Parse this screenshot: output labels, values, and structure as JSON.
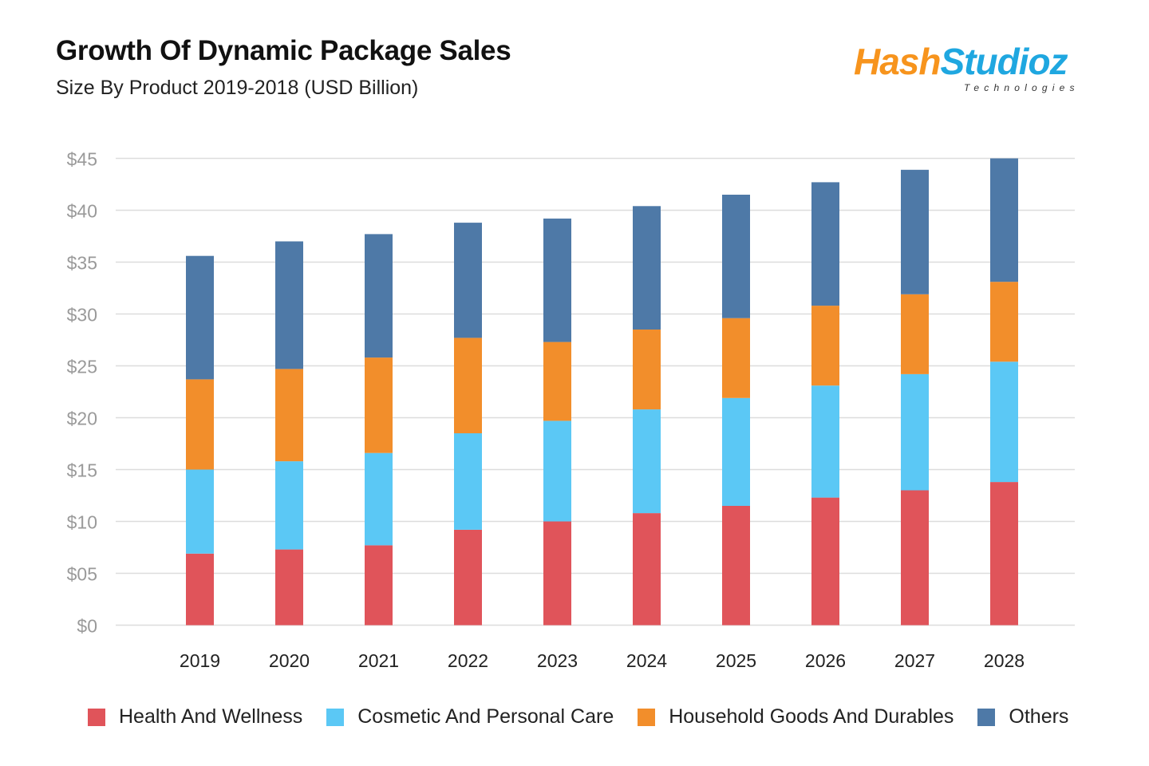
{
  "header": {
    "title": "Growth Of Dynamic Package Sales",
    "subtitle": "Size  By Product 2019-2018 (USD Billion)"
  },
  "logo": {
    "hash_text": "Hash",
    "studioz_text": "Studioz",
    "tagline": "Technologies",
    "colors": {
      "hash": "#f7941d",
      "studioz": "#1fa7e0"
    }
  },
  "chart_data": {
    "type": "bar",
    "stacked": true,
    "title": "Growth Of Dynamic Package Sales",
    "subtitle": "Size  By Product 2019-2018 (USD Billion)",
    "xlabel": "",
    "ylabel": "",
    "ylim": [
      0,
      45
    ],
    "yticks": [
      0,
      5,
      10,
      15,
      20,
      25,
      30,
      35,
      40,
      45
    ],
    "ytick_labels": [
      "$0",
      "$05",
      "$10",
      "$15",
      "$20",
      "$25",
      "$30",
      "$35",
      "$40",
      "$45"
    ],
    "grid": true,
    "legend_position": "bottom",
    "categories": [
      "2019",
      "2020",
      "2021",
      "2022",
      "2023",
      "2024",
      "2025",
      "2026",
      "2027",
      "2028"
    ],
    "series": [
      {
        "name": "Health And Wellness",
        "color": "#e0545a",
        "values": [
          6.9,
          7.3,
          7.7,
          9.2,
          10.0,
          10.8,
          11.5,
          12.3,
          13.0,
          13.8
        ]
      },
      {
        "name": "Cosmetic And Personal Care",
        "color": "#5bc8f5",
        "values": [
          8.1,
          8.5,
          8.9,
          9.3,
          9.7,
          10.0,
          10.4,
          10.8,
          11.2,
          11.6
        ]
      },
      {
        "name": "Household Goods And Durables",
        "color": "#f28e2b",
        "values": [
          8.7,
          8.9,
          9.2,
          9.2,
          7.6,
          7.7,
          7.7,
          7.7,
          7.7,
          7.7
        ]
      },
      {
        "name": "Others",
        "color": "#4e79a7",
        "values": [
          11.9,
          12.3,
          11.9,
          11.1,
          11.9,
          11.9,
          11.9,
          11.9,
          12.0,
          11.9
        ]
      }
    ]
  }
}
